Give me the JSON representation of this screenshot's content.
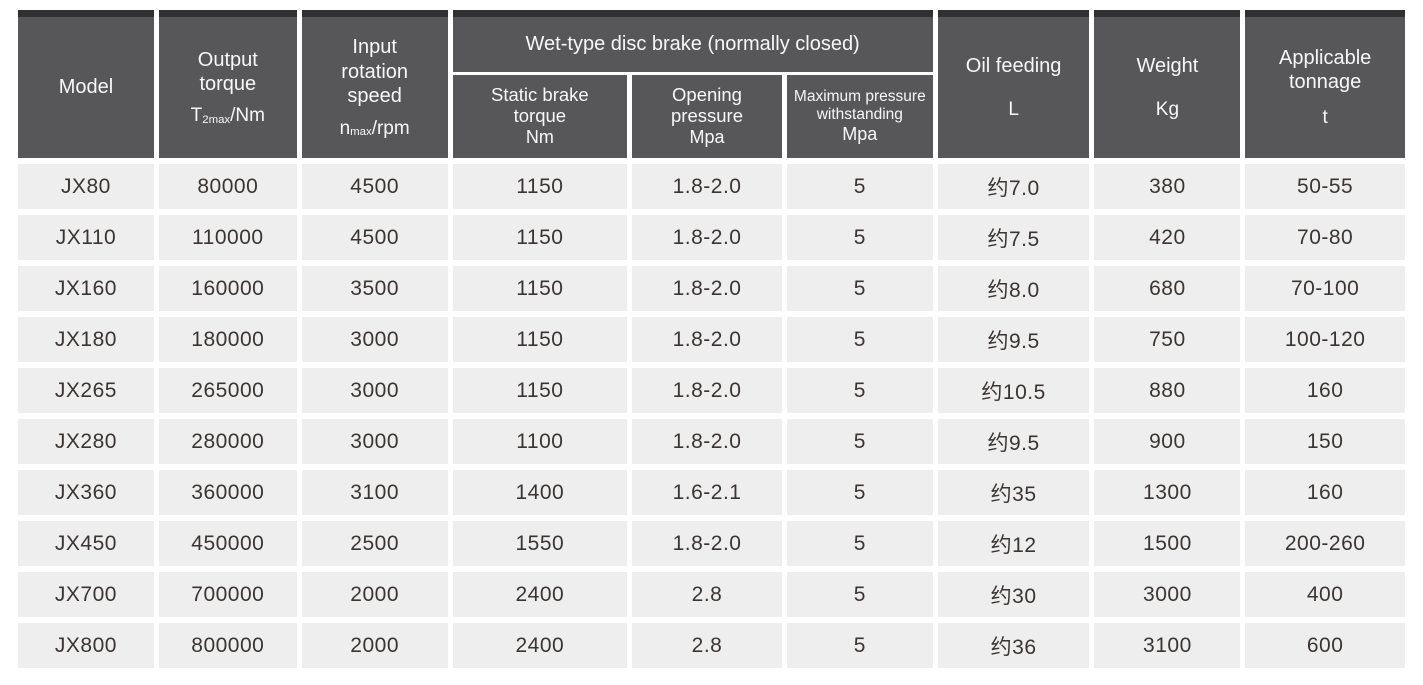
{
  "table": {
    "colors": {
      "header_bg": "#57575a",
      "header_top_band": "#303032",
      "header_text": "#f7f7f7",
      "cell_bg": "#efeeee",
      "cell_text": "#3a3532",
      "gap": "#ffffff"
    },
    "header": {
      "model": "Model",
      "output_torque": {
        "label": "Output\ntorque",
        "unit_base": "T",
        "unit_sub": "2max",
        "unit_rest": "/Nm"
      },
      "input_speed": {
        "label": "Input\nrotation\nspeed",
        "unit_base": "n",
        "unit_sub": "max",
        "unit_rest": "/rpm"
      },
      "brake_group": {
        "title": "Wet-type disc brake (normally closed)",
        "static_brake": {
          "label": "Static brake\ntorque",
          "unit": "Nm"
        },
        "opening_pressure": {
          "label": "Opening\npressure",
          "unit": "Mpa"
        },
        "max_pressure": {
          "label": "Maximum pressure\nwithstanding",
          "unit": "Mpa"
        }
      },
      "oil_feeding": {
        "label": "Oil feeding",
        "unit": "L"
      },
      "weight": {
        "label": "Weight",
        "unit": "Kg"
      },
      "tonnage": {
        "label": "Applicable\ntonnage",
        "unit": "t"
      }
    },
    "rows": [
      {
        "model": "JX80",
        "output_torque": "80000",
        "input_speed": "4500",
        "static_brake_torque": "1150",
        "opening_pressure": "1.8-2.0",
        "max_pressure": "5",
        "oil_feeding": "约7.0",
        "weight": "380",
        "tonnage": "50-55"
      },
      {
        "model": "JX110",
        "output_torque": "110000",
        "input_speed": "4500",
        "static_brake_torque": "1150",
        "opening_pressure": "1.8-2.0",
        "max_pressure": "5",
        "oil_feeding": "约7.5",
        "weight": "420",
        "tonnage": "70-80"
      },
      {
        "model": "JX160",
        "output_torque": "160000",
        "input_speed": "3500",
        "static_brake_torque": "1150",
        "opening_pressure": "1.8-2.0",
        "max_pressure": "5",
        "oil_feeding": "约8.0",
        "weight": "680",
        "tonnage": "70-100"
      },
      {
        "model": "JX180",
        "output_torque": "180000",
        "input_speed": "3000",
        "static_brake_torque": "1150",
        "opening_pressure": "1.8-2.0",
        "max_pressure": "5",
        "oil_feeding": "约9.5",
        "weight": "750",
        "tonnage": "100-120"
      },
      {
        "model": "JX265",
        "output_torque": "265000",
        "input_speed": "3000",
        "static_brake_torque": "1150",
        "opening_pressure": "1.8-2.0",
        "max_pressure": "5",
        "oil_feeding": "约10.5",
        "weight": "880",
        "tonnage": "160"
      },
      {
        "model": "JX280",
        "output_torque": "280000",
        "input_speed": "3000",
        "static_brake_torque": "1100",
        "opening_pressure": "1.8-2.0",
        "max_pressure": "5",
        "oil_feeding": "约9.5",
        "weight": "900",
        "tonnage": "150"
      },
      {
        "model": "JX360",
        "output_torque": "360000",
        "input_speed": "3100",
        "static_brake_torque": "1400",
        "opening_pressure": "1.6-2.1",
        "max_pressure": "5",
        "oil_feeding": "约35",
        "weight": "1300",
        "tonnage": "160"
      },
      {
        "model": "JX450",
        "output_torque": "450000",
        "input_speed": "2500",
        "static_brake_torque": "1550",
        "opening_pressure": "1.8-2.0",
        "max_pressure": "5",
        "oil_feeding": "约12",
        "weight": "1500",
        "tonnage": "200-260"
      },
      {
        "model": "JX700",
        "output_torque": "700000",
        "input_speed": "2000",
        "static_brake_torque": "2400",
        "opening_pressure": "2.8",
        "max_pressure": "5",
        "oil_feeding": "约30",
        "weight": "3000",
        "tonnage": "400"
      },
      {
        "model": "JX800",
        "output_torque": "800000",
        "input_speed": "2000",
        "static_brake_torque": "2400",
        "opening_pressure": "2.8",
        "max_pressure": "5",
        "oil_feeding": "约36",
        "weight": "3100",
        "tonnage": "600"
      }
    ]
  }
}
